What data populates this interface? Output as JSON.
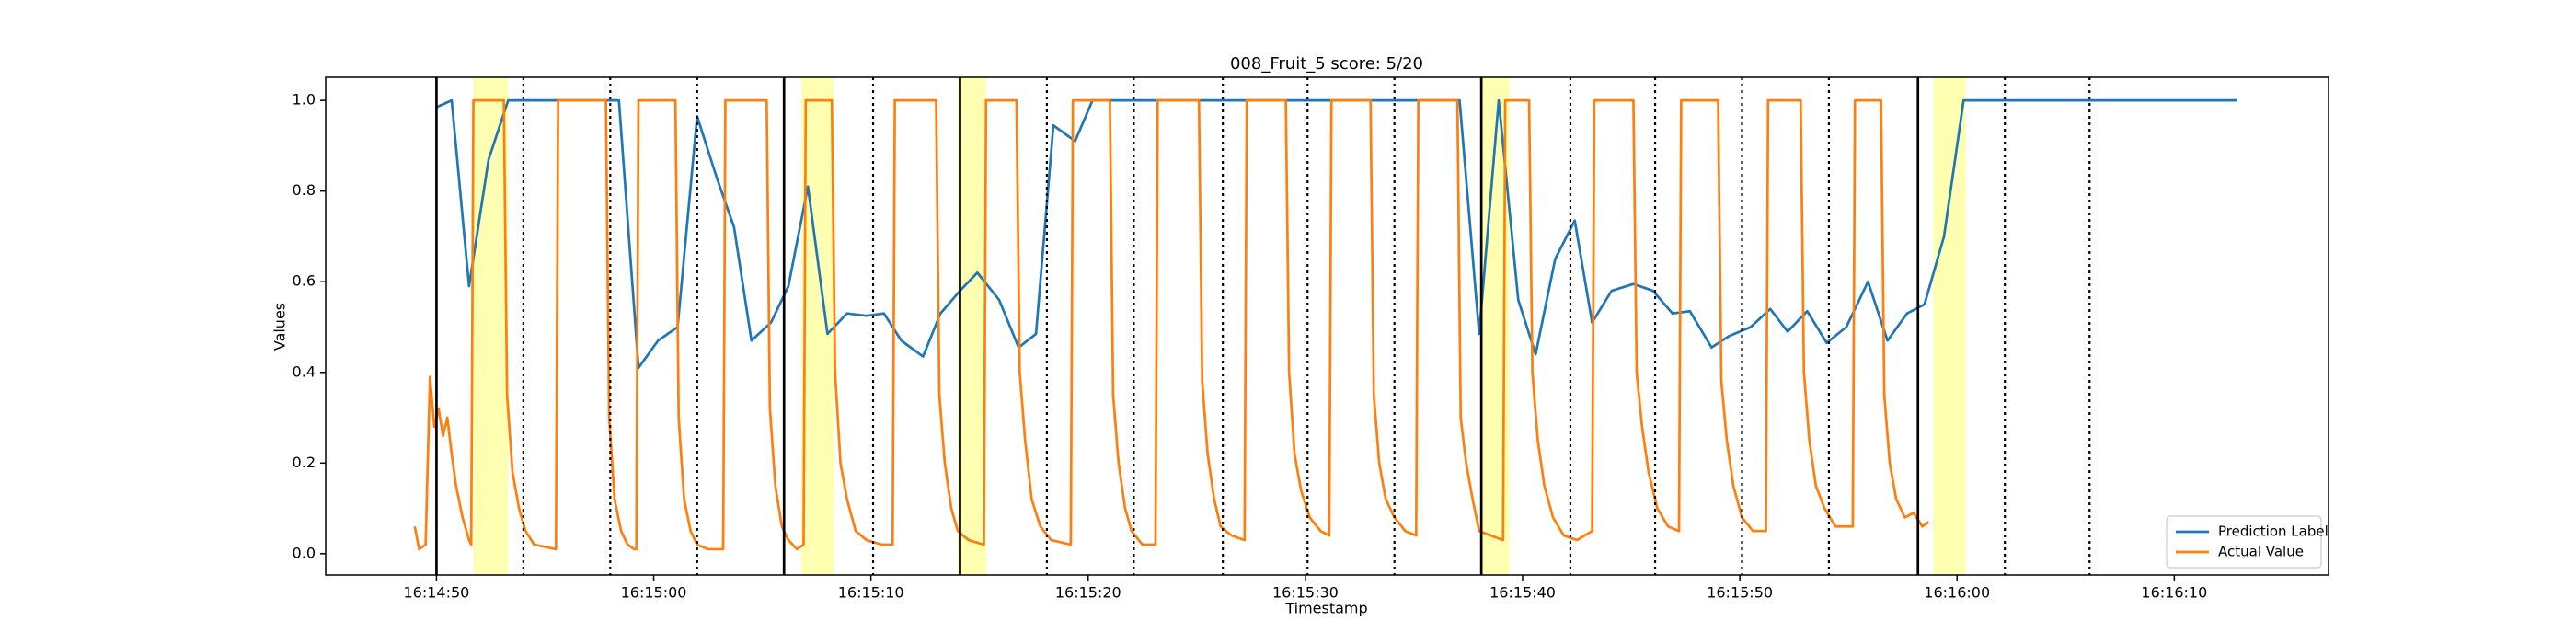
{
  "chart_data": {
    "type": "line",
    "title": "008_Fruit_5 score: 5/20",
    "x_label": "Timestamp",
    "y_label": "Values",
    "xlim": [
      58484.9,
      58577.1
    ],
    "ylim": [
      -0.047,
      1.051
    ],
    "xticks": [
      {
        "value": 58490,
        "label": "16:14:50"
      },
      {
        "value": 58500,
        "label": "16:15:00"
      },
      {
        "value": 58510,
        "label": "16:15:10"
      },
      {
        "value": 58520,
        "label": "16:15:20"
      },
      {
        "value": 58530,
        "label": "16:15:30"
      },
      {
        "value": 58540,
        "label": "16:15:40"
      },
      {
        "value": 58550,
        "label": "16:15:50"
      },
      {
        "value": 58560,
        "label": "16:16:00"
      },
      {
        "value": 58570,
        "label": "16:16:10"
      }
    ],
    "yticks": [
      {
        "value": 0,
        "label": "0.0"
      },
      0.2,
      0.4,
      0.6,
      0.8,
      {
        "value": 1,
        "label": "1.0"
      }
    ],
    "grid": false,
    "legend": "lower right",
    "solid_lines": [
      58490,
      58506,
      58514.1,
      58538.1,
      58558.2
    ],
    "dotted_lines": [
      58494,
      58498,
      58502,
      58510.1,
      58518.1,
      58522.1,
      58526.2,
      58530.1,
      58534.1,
      58542.2,
      58546.1,
      58550.1,
      58554.1,
      58562.2,
      58566.1
    ],
    "highlight_spans": [
      [
        58491.7,
        58493.3
      ],
      [
        58506.8,
        58508.3
      ],
      [
        58514.0,
        58515.3
      ],
      [
        58538.1,
        58539.4
      ],
      [
        58558.9,
        58560.4
      ]
    ],
    "highlight_color": "#ffff00",
    "series": [
      {
        "name": "Prediction Label",
        "color": "#1f77b4",
        "x": [
          58490.0,
          58490.7,
          58491.5,
          58492.4,
          58493.3,
          58494.2,
          58495.0,
          58495.9,
          58496.8,
          58497.6,
          58498.4,
          58499.3,
          58500.2,
          58501.1,
          58502.0,
          58502.9,
          58503.7,
          58504.5,
          58505.4,
          58506.2,
          58507.1,
          58508.0,
          58508.9,
          58509.8,
          58510.6,
          58511.4,
          58512.4,
          58513.2,
          58514.1,
          58514.9,
          58515.9,
          58516.8,
          58517.6,
          58518.4,
          58519.4,
          58520.2,
          58524.4,
          58528.6,
          58532.9,
          58537.1,
          58538.0,
          58538.9,
          58539.8,
          58540.6,
          58541.5,
          58542.4,
          58543.2,
          58544.1,
          58545.1,
          58546.0,
          58546.9,
          58547.7,
          58548.7,
          58549.5,
          58550.5,
          58551.4,
          58552.2,
          58553.1,
          58554.0,
          58554.9,
          58555.9,
          58556.8,
          58557.7,
          58558.5,
          58559.4,
          58560.3,
          58566.6,
          58572.9
        ],
        "values": [
          0.985,
          1.0,
          0.59,
          0.87,
          1.0,
          1.0,
          1.0,
          1.0,
          1.0,
          1.0,
          1.0,
          0.41,
          0.47,
          0.5,
          0.965,
          0.83,
          0.72,
          0.47,
          0.51,
          0.59,
          0.81,
          0.485,
          0.53,
          0.525,
          0.53,
          0.47,
          0.435,
          0.53,
          0.58,
          0.62,
          0.56,
          0.455,
          0.485,
          0.945,
          0.91,
          1.0,
          1.0,
          1.0,
          1.0,
          1.0,
          0.485,
          1.0,
          0.56,
          0.44,
          0.65,
          0.735,
          0.51,
          0.58,
          0.595,
          0.58,
          0.53,
          0.535,
          0.455,
          0.48,
          0.5,
          0.54,
          0.49,
          0.535,
          0.465,
          0.5,
          0.6,
          0.47,
          0.53,
          0.55,
          0.7,
          1.0,
          1.0,
          1.0
        ]
      },
      {
        "name": "Actual Value",
        "color": "#ff7f0e",
        "x": [
          58489.0,
          58489.2,
          58489.5,
          58489.7,
          58489.9,
          58490.1,
          58490.3,
          58490.5,
          58490.7,
          58490.9,
          58491.2,
          58491.5,
          58491.6,
          58491.7,
          58493.1,
          58493.25,
          58493.5,
          58493.8,
          58494.1,
          58494.5,
          58495.5,
          58495.6,
          58497.8,
          58497.95,
          58498.2,
          58498.5,
          58498.8,
          58499.1,
          58499.2,
          58499.3,
          58501.0,
          58501.15,
          58501.4,
          58501.7,
          58502.0,
          58502.5,
          58503.2,
          58503.3,
          58505.2,
          58505.35,
          58505.6,
          58505.9,
          58506.2,
          58506.6,
          58506.9,
          58507.0,
          58508.2,
          58508.35,
          58508.6,
          58508.9,
          58509.3,
          58509.8,
          58510.5,
          58511.0,
          58511.1,
          58513.0,
          58513.15,
          58513.4,
          58513.7,
          58514.0,
          58514.5,
          58515.2,
          58515.3,
          58516.7,
          58516.85,
          58517.1,
          58517.4,
          58517.8,
          58518.3,
          58519.2,
          58519.3,
          58521.0,
          58521.15,
          58521.4,
          58521.7,
          58522.0,
          58522.5,
          58523.1,
          58523.2,
          58525.1,
          58525.25,
          58525.5,
          58525.8,
          58526.1,
          58526.6,
          58527.2,
          58527.3,
          58529.1,
          58529.25,
          58529.5,
          58529.8,
          58530.2,
          58530.7,
          58531.1,
          58531.2,
          58533.0,
          58533.15,
          58533.4,
          58533.7,
          58534.1,
          58534.6,
          58535.1,
          58535.2,
          58537.0,
          58537.15,
          58537.4,
          58537.7,
          58538.0,
          58539.1,
          58539.2,
          58540.3,
          58540.45,
          58540.7,
          58541.0,
          58541.4,
          58541.9,
          58542.5,
          58543.2,
          58543.3,
          58545.1,
          58545.25,
          58545.5,
          58545.8,
          58546.2,
          58546.7,
          58547.2,
          58547.3,
          58549.0,
          58549.15,
          58549.4,
          58549.7,
          58550.1,
          58550.6,
          58551.2,
          58551.3,
          58552.8,
          58552.95,
          58553.2,
          58553.5,
          58553.9,
          58554.4,
          58555.2,
          58555.3,
          58556.5,
          58556.65,
          58556.9,
          58557.2,
          58557.6,
          58558.0,
          58558.4,
          58558.7
        ],
        "values": [
          0.06,
          0.01,
          0.02,
          0.39,
          0.28,
          0.32,
          0.26,
          0.3,
          0.22,
          0.15,
          0.08,
          0.03,
          0.02,
          1.0,
          1.0,
          0.35,
          0.18,
          0.1,
          0.05,
          0.02,
          0.01,
          1.0,
          1.0,
          0.3,
          0.12,
          0.05,
          0.02,
          0.01,
          0.01,
          1.0,
          1.0,
          0.3,
          0.12,
          0.05,
          0.02,
          0.01,
          0.01,
          1.0,
          1.0,
          0.32,
          0.15,
          0.06,
          0.03,
          0.01,
          0.02,
          1.0,
          1.0,
          0.4,
          0.2,
          0.12,
          0.05,
          0.03,
          0.02,
          0.02,
          1.0,
          1.0,
          0.35,
          0.2,
          0.1,
          0.05,
          0.03,
          0.02,
          1.0,
          1.0,
          0.4,
          0.25,
          0.12,
          0.06,
          0.03,
          0.02,
          1.0,
          1.0,
          0.35,
          0.2,
          0.1,
          0.05,
          0.02,
          0.02,
          1.0,
          1.0,
          0.38,
          0.22,
          0.12,
          0.06,
          0.04,
          0.03,
          1.0,
          1.0,
          0.4,
          0.22,
          0.14,
          0.08,
          0.05,
          0.04,
          1.0,
          1.0,
          0.35,
          0.2,
          0.12,
          0.08,
          0.05,
          0.04,
          1.0,
          1.0,
          0.3,
          0.2,
          0.12,
          0.05,
          0.03,
          1.0,
          1.0,
          0.4,
          0.25,
          0.15,
          0.08,
          0.04,
          0.03,
          0.05,
          1.0,
          1.0,
          0.4,
          0.28,
          0.18,
          0.1,
          0.06,
          0.05,
          1.0,
          1.0,
          0.38,
          0.25,
          0.15,
          0.08,
          0.05,
          0.05,
          1.0,
          1.0,
          0.4,
          0.25,
          0.15,
          0.1,
          0.06,
          0.06,
          1.0,
          1.0,
          0.35,
          0.2,
          0.12,
          0.08,
          0.09,
          0.06,
          0.07
        ]
      }
    ]
  }
}
